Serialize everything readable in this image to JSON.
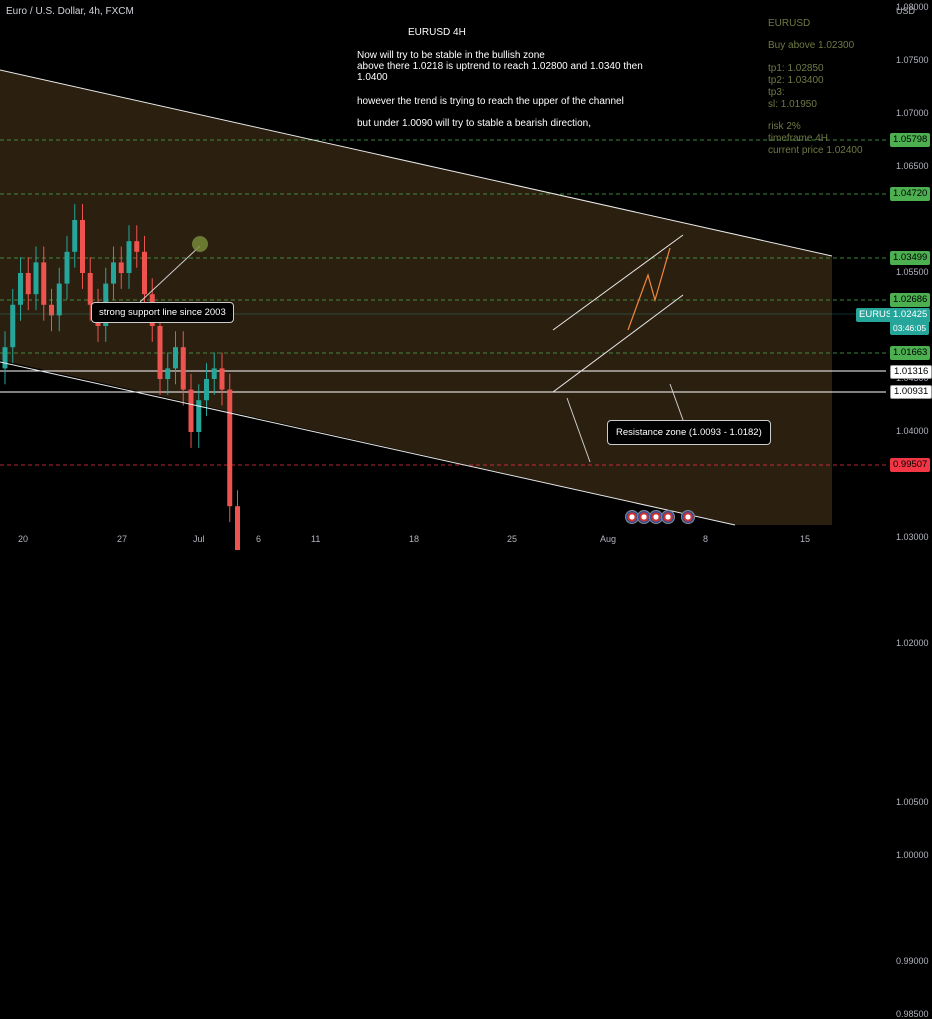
{
  "header": {
    "symbol": "Euro / U.S. Dollar, 4h, FXCM",
    "currency": "USD"
  },
  "notes": {
    "title": "EURUSD 4H",
    "line1": "Now will try to be stable in the bullish zone",
    "line2": "above there 1.0218 is uptrend to reach 1.02800 and 1.0340 then",
    "line3": "1.0400",
    "line4": "however the trend is trying to reach the upper  of the channel",
    "line5": "but under 1.0090 will try to stable a bearish direction,"
  },
  "side_note": {
    "pair": "EURUSD",
    "buy": "Buy above 1.02300",
    "tp1": "tp1: 1.02850",
    "tp2": "tp2: 1.03400",
    "tp3": "tp3:",
    "sl": "sl: 1.01950",
    "risk": "risk 2%",
    "timeframe": "timeframe 4H",
    "current": "current price 1.02400"
  },
  "callouts": {
    "support": "strong support line since 2003",
    "resistance": "Resistance zone (1.0093  -  1.0182)"
  },
  "price_tags": {
    "t1": "1.05798",
    "t2": "1.04720",
    "t3": "1.03499",
    "t4": "1.02686",
    "symbol": "EURUSD",
    "current": "1.02425",
    "countdown": "03:46:05",
    "t5": "1.01663",
    "t6": "1.01316",
    "t7": "1.00931",
    "t8": "0.99507"
  },
  "colors": {
    "up": "#26a69a",
    "down": "#ef5350",
    "level": "#4caf50",
    "stop": "#f23645",
    "channel": "#3a2a14"
  },
  "chart_data": {
    "type": "candlestick",
    "title": "EURUSD 4H",
    "ylim": [
      0.985,
      1.08
    ],
    "y_ticks": [
      "1.08000",
      "1.07500",
      "1.07000",
      "1.06500",
      "1.05500",
      "1.05000",
      "1.04500",
      "1.04000",
      "1.03000",
      "1.02000",
      "1.00500",
      "1.00000",
      "0.99000",
      "0.98500"
    ],
    "y_tick_values": [
      1.08,
      1.075,
      1.07,
      1.065,
      1.055,
      1.05,
      1.045,
      1.04,
      1.03,
      1.02,
      1.005,
      1.0,
      0.99,
      0.985
    ],
    "x_ticks": [
      "20",
      "27",
      "Jul",
      "6",
      "11",
      "18",
      "25",
      "Aug",
      "8",
      "15"
    ],
    "levels": [
      1.05798,
      1.0472,
      1.03499,
      1.02686,
      1.01663,
      1.01316,
      1.00931,
      0.99507
    ],
    "price_path": [
      1.048,
      1.052,
      1.055,
      1.053,
      1.056,
      1.052,
      1.051,
      1.054,
      1.057,
      1.06,
      1.055,
      1.052,
      1.05,
      1.054,
      1.056,
      1.055,
      1.058,
      1.057,
      1.053,
      1.05,
      1.045,
      1.046,
      1.048,
      1.044,
      1.04,
      1.043,
      1.045,
      1.046,
      1.044,
      1.033,
      1.025,
      1.024,
      1.022,
      1.02,
      1.019,
      1.018,
      1.016,
      1.017,
      1.018,
      1.015,
      1.01,
      1.006,
      1.004,
      1.001,
      1.003,
      1.002,
      1.006,
      1.007,
      1.004,
      1.003,
      1.0,
      1.002,
      1.006,
      1.01,
      1.014,
      1.018,
      1.017,
      1.022,
      1.025,
      1.024,
      1.022,
      1.019,
      1.02,
      1.023,
      1.022,
      1.019,
      1.021,
      1.024,
      1.022,
      1.019,
      1.018,
      1.014,
      1.015,
      1.019,
      1.021,
      1.02,
      1.023,
      1.026,
      1.027,
      1.025,
      1.0243
    ]
  }
}
